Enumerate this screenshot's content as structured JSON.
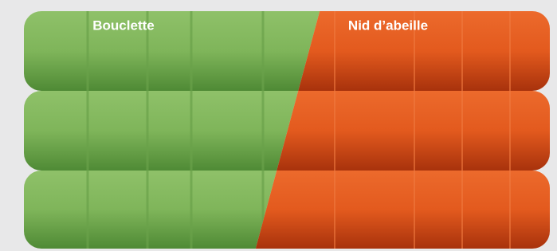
{
  "labels": {
    "left": "Bouclette",
    "right": "Nid d’abeille"
  }
}
